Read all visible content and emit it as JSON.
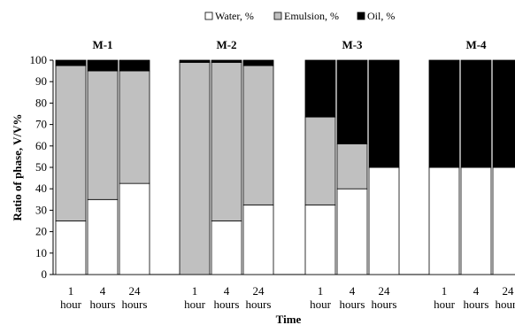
{
  "chart_data": {
    "type": "bar",
    "stacked": true,
    "ylabel": "Ratio of phase, V/V%",
    "xlabel": "Time",
    "ylim": [
      0,
      100
    ],
    "yticks": [
      0,
      10,
      20,
      30,
      40,
      50,
      60,
      70,
      80,
      90,
      100
    ],
    "legend": {
      "position": "top",
      "entries": [
        {
          "name": "Water, %",
          "color": "#ffffff"
        },
        {
          "name": "Emulsion, %",
          "color": "#c0c0c0"
        },
        {
          "name": "Oil, %",
          "color": "#000000"
        }
      ]
    },
    "groups": [
      {
        "name": "M-1",
        "categories": [
          {
            "num": "1",
            "unit": "hour"
          },
          {
            "num": "4",
            "unit": "hours"
          },
          {
            "num": "24",
            "unit": "hours"
          }
        ],
        "series": [
          {
            "name": "Water, %",
            "values": [
              25,
              35,
              42.5
            ]
          },
          {
            "name": "Emulsion, %",
            "values": [
              72.5,
              60,
              52.5
            ]
          },
          {
            "name": "Oil, %",
            "values": [
              2.5,
              5,
              5
            ]
          }
        ]
      },
      {
        "name": "M-2",
        "categories": [
          {
            "num": "1",
            "unit": "hour"
          },
          {
            "num": "4",
            "unit": "hours"
          },
          {
            "num": "24",
            "unit": "hours"
          }
        ],
        "series": [
          {
            "name": "Water, %",
            "values": [
              0,
              25,
              32.5
            ]
          },
          {
            "name": "Emulsion, %",
            "values": [
              99,
              74,
              65
            ]
          },
          {
            "name": "Oil, %",
            "values": [
              1,
              1,
              2.5
            ]
          }
        ]
      },
      {
        "name": "M-3",
        "categories": [
          {
            "num": "1",
            "unit": "hour"
          },
          {
            "num": "4",
            "unit": "hours"
          },
          {
            "num": "24",
            "unit": "hours"
          }
        ],
        "series": [
          {
            "name": "Water, %",
            "values": [
              32.5,
              40,
              50
            ]
          },
          {
            "name": "Emulsion, %",
            "values": [
              41,
              21,
              0
            ]
          },
          {
            "name": "Oil, %",
            "values": [
              26.5,
              39,
              50
            ]
          }
        ]
      },
      {
        "name": "M-4",
        "categories": [
          {
            "num": "1",
            "unit": "hour"
          },
          {
            "num": "4",
            "unit": "hours"
          },
          {
            "num": "24",
            "unit": "hours"
          }
        ],
        "series": [
          {
            "name": "Water, %",
            "values": [
              50,
              50,
              50
            ]
          },
          {
            "name": "Emulsion, %",
            "values": [
              0,
              0,
              0
            ]
          },
          {
            "name": "Oil, %",
            "values": [
              50,
              50,
              50
            ]
          }
        ]
      }
    ]
  }
}
